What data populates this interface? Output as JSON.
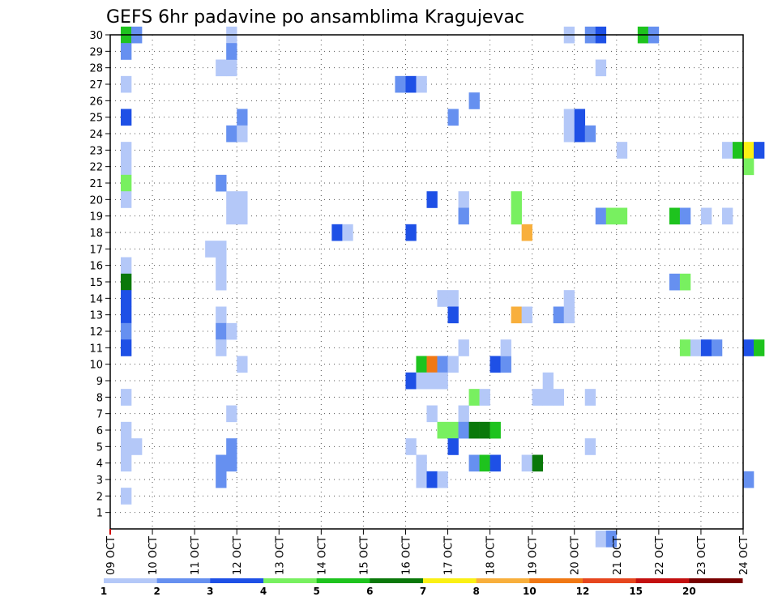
{
  "chart_data": {
    "type": "heatmap",
    "title": "GEFS 6hr padavine po ansamblima Kragujevac",
    "x_start": "2018-10-09 00:00",
    "x_step_hours": 6,
    "x_ticks": [
      "09 OCT",
      "10 OCT",
      "11 OCT",
      "12 OCT",
      "13 OCT",
      "14 OCT",
      "15 OCT",
      "16 OCT",
      "17 OCT",
      "18 OCT",
      "19 OCT",
      "20 OCT",
      "21 OCT",
      "22 OCT",
      "23 OCT",
      "24 OCT"
    ],
    "y_ticks": [
      1,
      2,
      3,
      4,
      5,
      6,
      7,
      8,
      9,
      10,
      11,
      12,
      13,
      14,
      15,
      16,
      17,
      18,
      19,
      20,
      21,
      22,
      23,
      24,
      25,
      26,
      27,
      28,
      29,
      30
    ],
    "ylim": [
      0,
      30
    ],
    "grid": true,
    "legend": {
      "placement": "bottom",
      "labels": [
        "1",
        "2",
        "3",
        "4",
        "5",
        "6",
        "7",
        "8",
        "10",
        "12",
        "15",
        "20"
      ],
      "colors": [
        "#b4c8f8",
        "#6690f0",
        "#1e50e6",
        "#78f060",
        "#1ec31e",
        "#0a780a",
        "#faf014",
        "#f8af3c",
        "#f07814",
        "#e6461e",
        "#c30f0f",
        "#780000"
      ]
    },
    "cells": [
      [
        1,
        30,
        4
      ],
      [
        2,
        30,
        1
      ],
      [
        1,
        29,
        1
      ],
      [
        1,
        27,
        0
      ],
      [
        1,
        25,
        2
      ],
      [
        1,
        23,
        0
      ],
      [
        1,
        22,
        0
      ],
      [
        1,
        21,
        3
      ],
      [
        1,
        20,
        0
      ],
      [
        1,
        16,
        0
      ],
      [
        1,
        15,
        5
      ],
      [
        1,
        14,
        2
      ],
      [
        1,
        13,
        2
      ],
      [
        1,
        12,
        1
      ],
      [
        1,
        11,
        2
      ],
      [
        1,
        8,
        0
      ],
      [
        1,
        6,
        0
      ],
      [
        1,
        5,
        0
      ],
      [
        2,
        5,
        0
      ],
      [
        1,
        4,
        0
      ],
      [
        1,
        2,
        0
      ],
      [
        9,
        17,
        0
      ],
      [
        10,
        17,
        0
      ],
      [
        10,
        16,
        0
      ],
      [
        10,
        15,
        0
      ],
      [
        10,
        13,
        0
      ],
      [
        10,
        12,
        1
      ],
      [
        10,
        11,
        0
      ],
      [
        10,
        4,
        1
      ],
      [
        10,
        3,
        1
      ],
      [
        10,
        28,
        0
      ],
      [
        11,
        28,
        0
      ],
      [
        10,
        21,
        1
      ],
      [
        11,
        30,
        0
      ],
      [
        11,
        29,
        1
      ],
      [
        11,
        24,
        1
      ],
      [
        11,
        20,
        0
      ],
      [
        12,
        20,
        0
      ],
      [
        11,
        19,
        0
      ],
      [
        12,
        19,
        0
      ],
      [
        11,
        12,
        0
      ],
      [
        11,
        7,
        0
      ],
      [
        11,
        5,
        1
      ],
      [
        11,
        4,
        1
      ],
      [
        12,
        25,
        1
      ],
      [
        12,
        24,
        0
      ],
      [
        12,
        10,
        0
      ],
      [
        21,
        18,
        2
      ],
      [
        22,
        18,
        0
      ],
      [
        27,
        27,
        1
      ],
      [
        28,
        27,
        2
      ],
      [
        29,
        27,
        0
      ],
      [
        28,
        18,
        2
      ],
      [
        28,
        9,
        2
      ],
      [
        28,
        5,
        0
      ],
      [
        29,
        10,
        4
      ],
      [
        30,
        10,
        8
      ],
      [
        31,
        10,
        1
      ],
      [
        32,
        10,
        0
      ],
      [
        29,
        9,
        0
      ],
      [
        30,
        9,
        0
      ],
      [
        31,
        9,
        0
      ],
      [
        29,
        4,
        0
      ],
      [
        29,
        3,
        0
      ],
      [
        30,
        3,
        2
      ],
      [
        31,
        3,
        0
      ],
      [
        30,
        20,
        2
      ],
      [
        30,
        7,
        0
      ],
      [
        31,
        6,
        3
      ],
      [
        32,
        6,
        3
      ],
      [
        31,
        14,
        0
      ],
      [
        32,
        14,
        0
      ],
      [
        32,
        13,
        2
      ],
      [
        32,
        5,
        2
      ],
      [
        32,
        25,
        1
      ],
      [
        33,
        20,
        0
      ],
      [
        33,
        19,
        1
      ],
      [
        33,
        11,
        0
      ],
      [
        33,
        7,
        0
      ],
      [
        33,
        6,
        1
      ],
      [
        34,
        26,
        1
      ],
      [
        34,
        8,
        3
      ],
      [
        34,
        4,
        1
      ],
      [
        35,
        8,
        0
      ],
      [
        35,
        4,
        4
      ],
      [
        36,
        4,
        2
      ],
      [
        34,
        6,
        5
      ],
      [
        35,
        6,
        5
      ],
      [
        36,
        6,
        4
      ],
      [
        36,
        10,
        2
      ],
      [
        37,
        10,
        1
      ],
      [
        37,
        11,
        0
      ],
      [
        38,
        20,
        3
      ],
      [
        38,
        19,
        3
      ],
      [
        39,
        18,
        7
      ],
      [
        38,
        13,
        7
      ],
      [
        39,
        13,
        0
      ],
      [
        39,
        4,
        0
      ],
      [
        40,
        4,
        5
      ],
      [
        40,
        8,
        0
      ],
      [
        41,
        8,
        0
      ],
      [
        41,
        9,
        0
      ],
      [
        42,
        8,
        0
      ],
      [
        42,
        13,
        1
      ],
      [
        43,
        13,
        0
      ],
      [
        43,
        14,
        0
      ],
      [
        43,
        30,
        0
      ],
      [
        43,
        25,
        0
      ],
      [
        43,
        24,
        0
      ],
      [
        44,
        25,
        2
      ],
      [
        44,
        24,
        2
      ],
      [
        45,
        24,
        1
      ],
      [
        45,
        8,
        0
      ],
      [
        45,
        5,
        0
      ],
      [
        45,
        30,
        1
      ],
      [
        46,
        30,
        2
      ],
      [
        46,
        28,
        0
      ],
      [
        46,
        -0.6,
        0
      ],
      [
        47,
        -0.6,
        1
      ],
      [
        46,
        19,
        1
      ],
      [
        47,
        19,
        3
      ],
      [
        48,
        19,
        3
      ],
      [
        48,
        23,
        0
      ],
      [
        50,
        30,
        4
      ],
      [
        51,
        30,
        1
      ],
      [
        53,
        19,
        4
      ],
      [
        54,
        19,
        1
      ],
      [
        53,
        15,
        1
      ],
      [
        54,
        15,
        3
      ],
      [
        54,
        11,
        3
      ],
      [
        55,
        11,
        0
      ],
      [
        56,
        11,
        2
      ],
      [
        57,
        11,
        1
      ],
      [
        56,
        19,
        0
      ],
      [
        58,
        19,
        0
      ],
      [
        58,
        23,
        0
      ],
      [
        59,
        23,
        4
      ],
      [
        60,
        23,
        6
      ],
      [
        61,
        23,
        2
      ],
      [
        60,
        22,
        3
      ],
      [
        60,
        11,
        2
      ],
      [
        61,
        11,
        4
      ],
      [
        60,
        3,
        1
      ]
    ]
  }
}
